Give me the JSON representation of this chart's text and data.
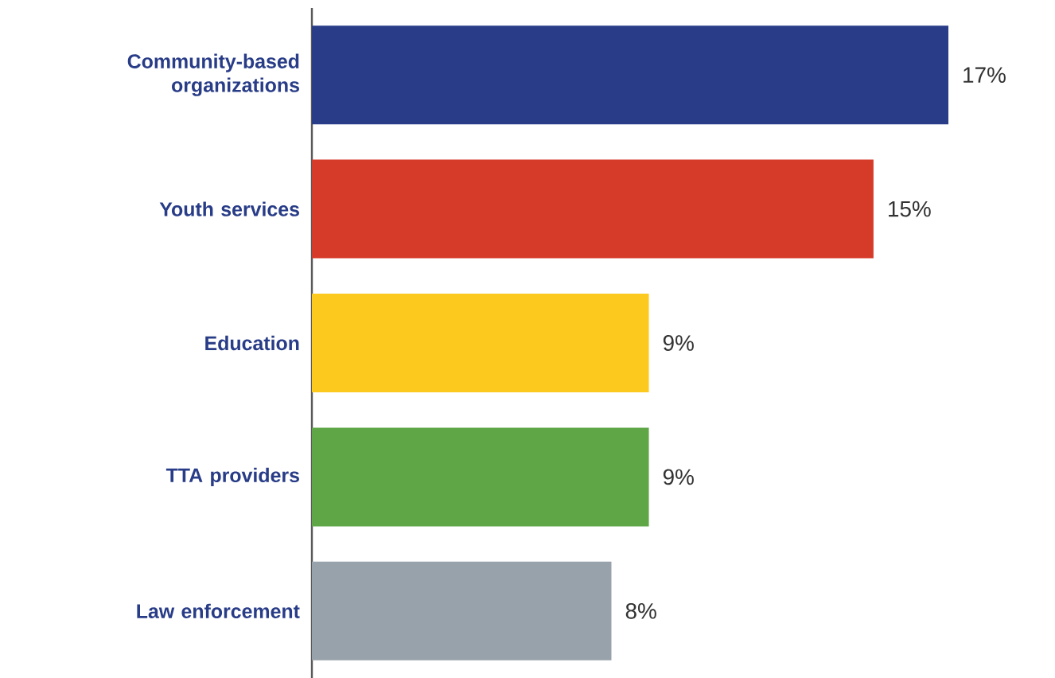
{
  "chart_data": {
    "type": "bar",
    "orientation": "horizontal",
    "categories": [
      "Community-based organizations",
      "Youth services",
      "Education",
      "TTA providers",
      "Law enforcement"
    ],
    "values": [
      17,
      15,
      9,
      9,
      8
    ],
    "value_labels": [
      "17%",
      "15%",
      "9%",
      "9%",
      "8%"
    ],
    "colors": [
      "#283c87",
      "#d63b2a",
      "#fcc91f",
      "#5ea646",
      "#98a2aa"
    ]
  }
}
